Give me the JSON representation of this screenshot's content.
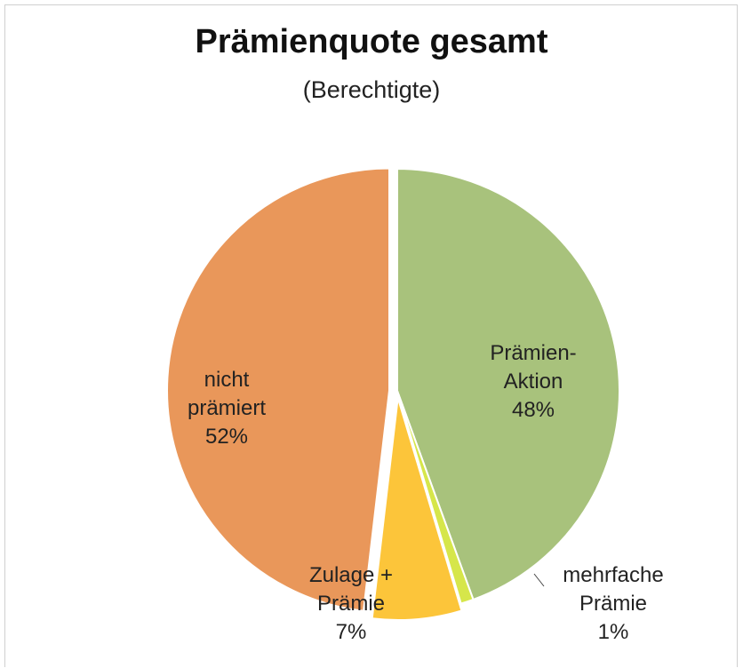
{
  "chart_data": {
    "type": "pie",
    "title": "Prämienquote gesamt",
    "subtitle": "(Berechtigte)",
    "categories": [
      "Prämien-Aktion",
      "mehrfache Prämie",
      "Zulage + Prämie",
      "nicht prämiert"
    ],
    "values": [
      48,
      1,
      7,
      52
    ],
    "value_labels": [
      "48%",
      "1%",
      "7%",
      "52%"
    ],
    "colors": [
      "#a8c27c",
      "#d6e64a",
      "#fcc53a",
      "#e9975a"
    ]
  }
}
